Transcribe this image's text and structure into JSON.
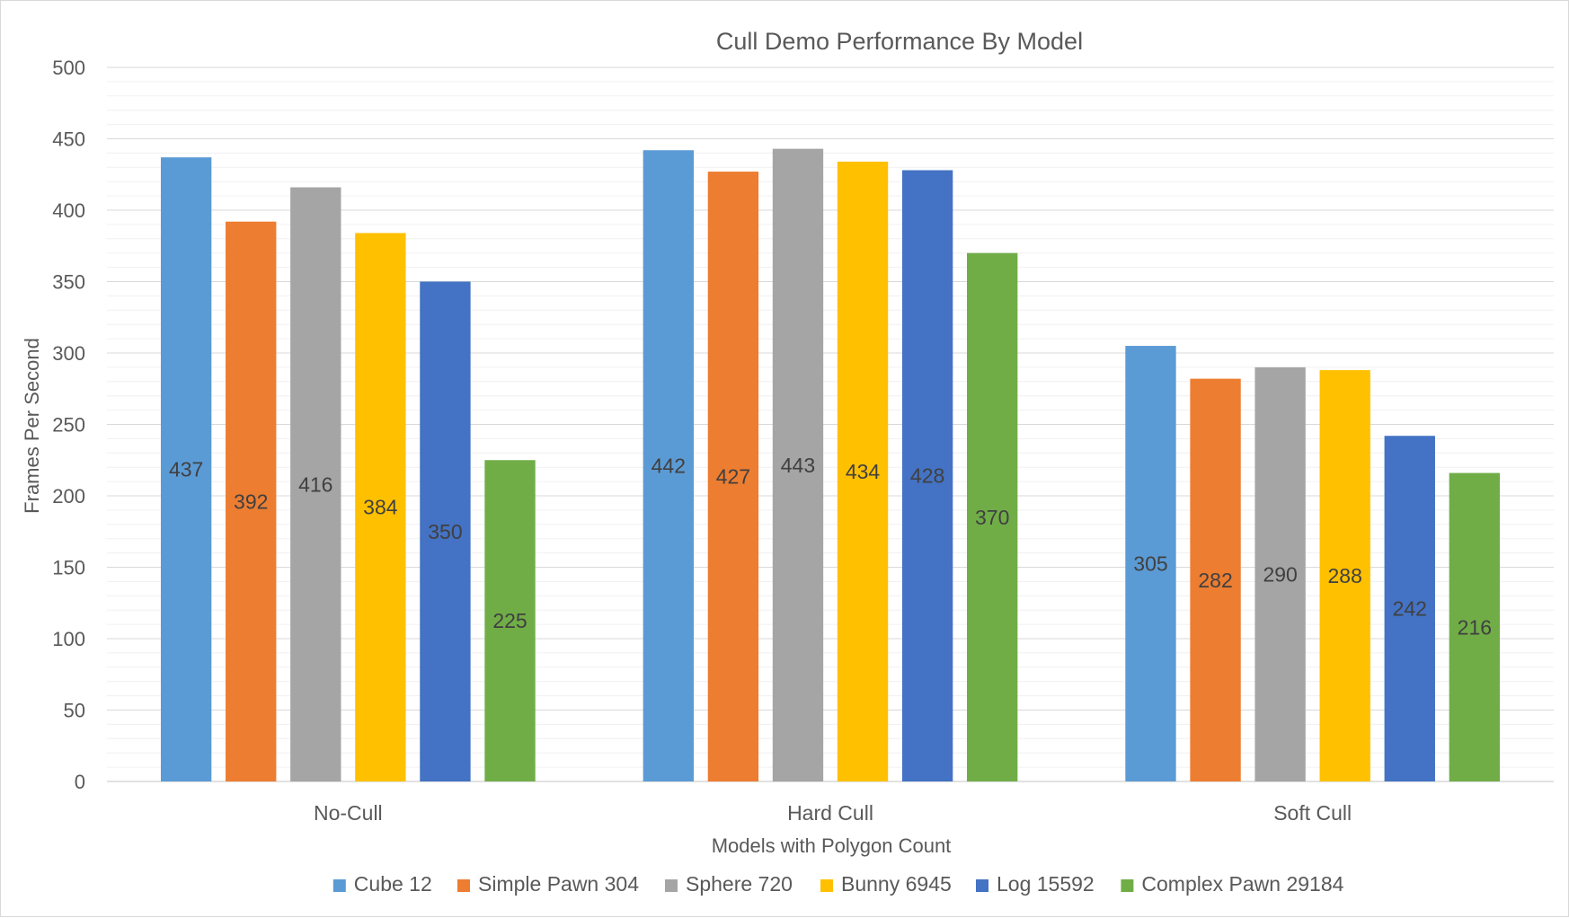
{
  "chart_data": {
    "type": "bar",
    "title": "Cull Demo Performance By Model",
    "xlabel": "Models with Polygon Count",
    "ylabel": "Frames Per Second",
    "ylim": [
      0,
      500
    ],
    "yticks": [
      0,
      50,
      100,
      150,
      200,
      250,
      300,
      350,
      400,
      450,
      500
    ],
    "grid": true,
    "legend_position": "bottom",
    "categories": [
      "No-Cull",
      "Hard Cull",
      "Soft Cull"
    ],
    "series": [
      {
        "name": "Cube 12",
        "color": "#5b9bd5",
        "values": [
          437,
          442,
          305
        ]
      },
      {
        "name": "Simple Pawn 304",
        "color": "#ed7d31",
        "values": [
          392,
          427,
          282
        ]
      },
      {
        "name": "Sphere 720",
        "color": "#a5a5a5",
        "values": [
          416,
          443,
          290
        ]
      },
      {
        "name": "Bunny 6945",
        "color": "#ffc000",
        "values": [
          384,
          434,
          288
        ]
      },
      {
        "name": "Log 15592",
        "color": "#4472c4",
        "values": [
          350,
          428,
          242
        ]
      },
      {
        "name": "Complex Pawn 29184",
        "color": "#70ad47",
        "values": [
          225,
          370,
          216
        ]
      }
    ]
  }
}
